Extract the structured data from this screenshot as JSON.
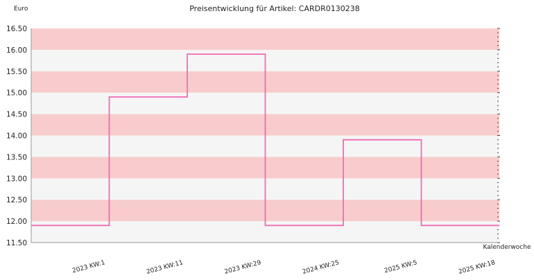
{
  "chart_data": {
    "type": "line",
    "step": true,
    "title": "Preisentwicklung für Artikel: CARDR0130238",
    "ylabel": "Euro",
    "xlabel": "Kalenderwoche",
    "ylim": [
      11.5,
      16.5
    ],
    "yticks": [
      11.5,
      12.0,
      12.5,
      13.0,
      13.5,
      14.0,
      14.5,
      15.0,
      15.5,
      16.0,
      16.5
    ],
    "categories": [
      "2023 KW:1",
      "2023 KW:11",
      "2023 KW:29",
      "2024 KW:25",
      "2025 KW:5",
      "2025 KW:18"
    ],
    "series": [
      {
        "values": [
          11.9,
          14.9,
          15.9,
          11.9,
          13.9,
          11.9
        ]
      }
    ],
    "grid": true,
    "colors": {
      "line": "#f06ab4",
      "band": "#f8cccc",
      "band_alt": "#f5f5f5"
    }
  }
}
